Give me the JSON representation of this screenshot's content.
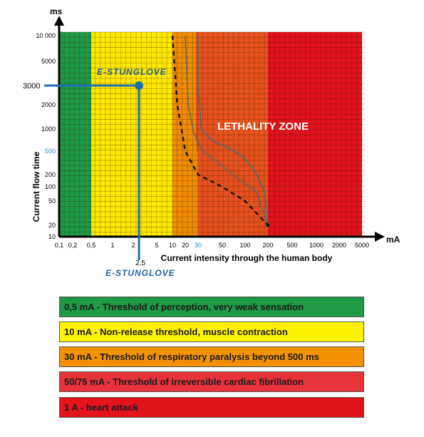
{
  "chart_data": {
    "type": "area",
    "xlabel": "Current intensity through the human body",
    "ylabel": "Current flow time",
    "x_unit": "mA",
    "y_unit": "ms",
    "x_ticks": [
      "0,1",
      "0,2",
      "0,5",
      "1",
      "2",
      "5",
      "10",
      "20",
      "30",
      "50",
      "100",
      "200",
      "500",
      "1000",
      "2000",
      "5000"
    ],
    "y_ticks": [
      "10 000",
      "5000",
      "2000",
      "1000",
      "500",
      "200",
      "100",
      "50",
      "20",
      "10"
    ],
    "y_ticks_highlight": "500",
    "x_ticks_highlight": "30",
    "zones": [
      {
        "from_mA": 0.1,
        "to_mA": 0.5,
        "color": "#1f9a46"
      },
      {
        "from_mA": 0.5,
        "to_mA": 10,
        "color": "#ffe800"
      },
      {
        "from_mA": 10,
        "to_mA": 30,
        "color": "#f08c00"
      },
      {
        "from_mA": 30,
        "to_mA": 200,
        "color": "#e8511f"
      },
      {
        "from_mA": 200,
        "to_mA": 5000,
        "color": "#e3131b"
      }
    ],
    "lethality_zone_label": "LETHALITY ZONE",
    "dashed_threshold_curve": [
      [
        10,
        10000
      ],
      [
        13,
        2000
      ],
      [
        20,
        500
      ],
      [
        30,
        200
      ],
      [
        50,
        100
      ],
      [
        100,
        50
      ],
      [
        200,
        20
      ]
    ],
    "marker": {
      "x_mA": 2.5,
      "y_ms": 3000,
      "x_label": "2,5",
      "y_label": "3000"
    },
    "brand_label": "E-STUNGLOVE"
  },
  "legend": [
    {
      "text": "0,5 mA - Threshold of perception, very weak sensation",
      "color": "#1f9a46"
    },
    {
      "text": "10 mA - Non-release threshold, muscle contraction",
      "color": "#fff200"
    },
    {
      "text": "30 mA - Threshold of respiratory paralysis beyond 500 ms",
      "color": "#f39200"
    },
    {
      "text": "50/75 mA - Threshold of irreversible cardiac fibrillation",
      "color": "#e9333b"
    },
    {
      "text": "1 A - heart attack",
      "color": "#e3131b"
    }
  ]
}
